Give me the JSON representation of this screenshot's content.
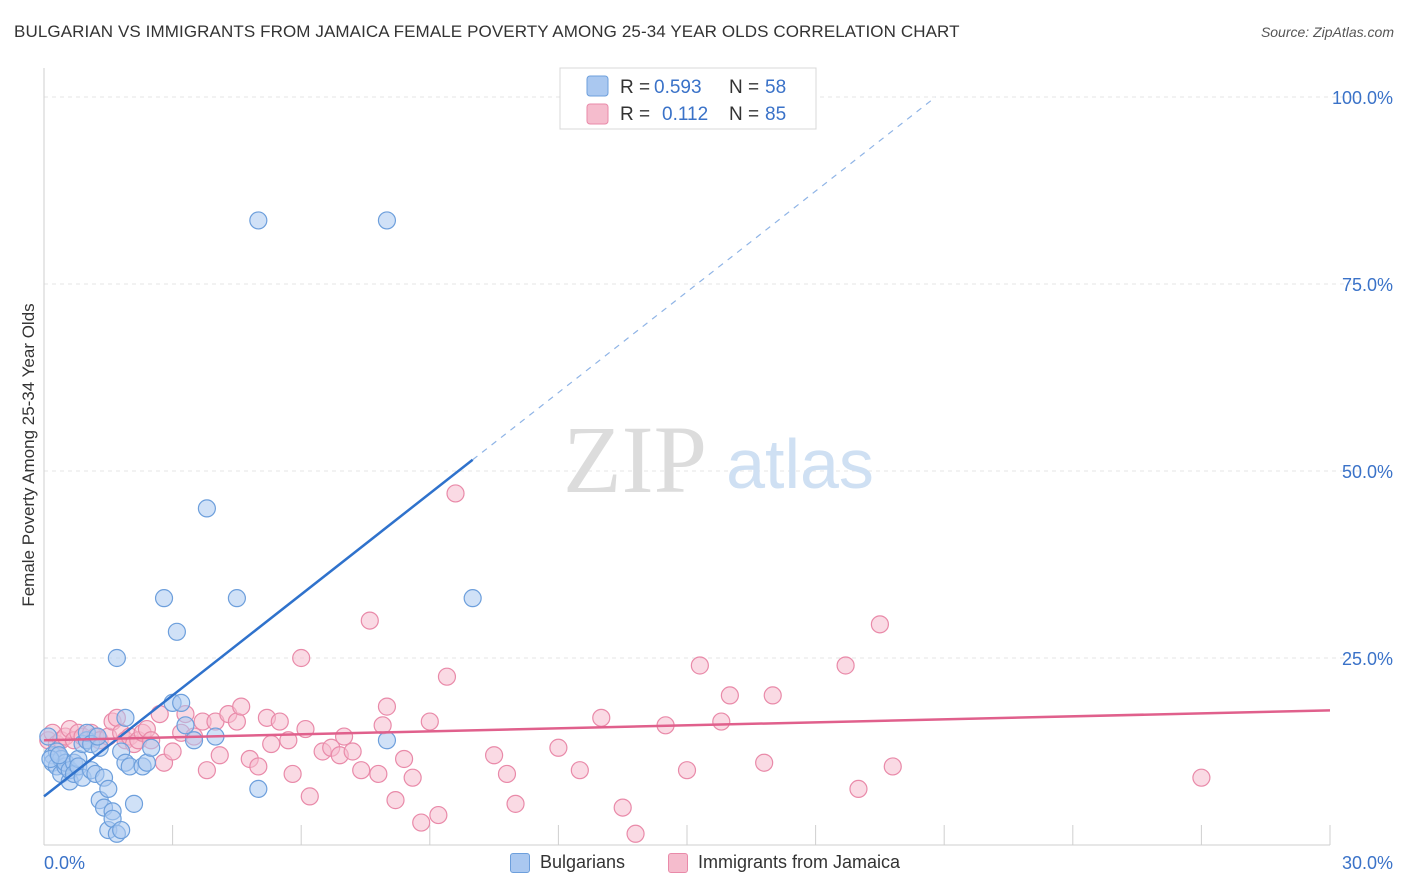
{
  "header": {
    "title": "BULGARIAN VS IMMIGRANTS FROM JAMAICA FEMALE POVERTY AMONG 25-34 YEAR OLDS CORRELATION CHART",
    "source": "Source: ZipAtlas.com"
  },
  "watermark": {
    "zip": "ZIP",
    "atlas": "atlas"
  },
  "legend": {
    "rows": [
      {
        "r_label": "R =",
        "r_value": "0.593",
        "n_label": "N =",
        "n_value": "58"
      },
      {
        "r_label": "R =",
        "r_value": "0.112",
        "n_label": "N =",
        "n_value": "85"
      }
    ]
  },
  "chart_data": {
    "type": "scatter",
    "title": "BULGARIAN VS IMMIGRANTS FROM JAMAICA FEMALE POVERTY AMONG 25-34 YEAR OLDS CORRELATION CHART",
    "xlabel": "",
    "ylabel": "Female Poverty Among 25-34 Year Olds",
    "xlim": [
      0,
      30
    ],
    "ylim": [
      0,
      100
    ],
    "x_tick_labels": [
      {
        "value": 0,
        "label": "0.0%"
      },
      {
        "value": 30,
        "label": "30.0%"
      }
    ],
    "y_tick_labels": [
      {
        "value": 25,
        "label": "25.0%"
      },
      {
        "value": 50,
        "label": "50.0%"
      },
      {
        "value": 75,
        "label": "75.0%"
      },
      {
        "value": 100,
        "label": "100.0%"
      }
    ],
    "colors": {
      "blue_fill": "#aac8f0",
      "blue_stroke": "#6d9fdc",
      "blue_line": "#2f72cc",
      "pink_fill": "#f5bccd",
      "pink_stroke": "#e98aa9",
      "pink_line": "#e0608c",
      "accent_text": "#3a72c8"
    },
    "series": [
      {
        "name": "Bulgarians",
        "color": "#6d9fdc",
        "R": 0.593,
        "N": 58,
        "trend": {
          "x0": 0,
          "y0": 6.5,
          "x1": 10,
          "y1": 51.5,
          "dashed_to_x": 20.8,
          "dashed_to_y": 100
        },
        "points": [
          [
            0.1,
            14.5
          ],
          [
            0.2,
            12.0
          ],
          [
            0.2,
            11.0
          ],
          [
            0.3,
            10.5
          ],
          [
            0.3,
            12.5
          ],
          [
            0.4,
            11.5
          ],
          [
            0.4,
            9.5
          ],
          [
            0.5,
            10.5
          ],
          [
            0.5,
            11.0
          ],
          [
            0.6,
            8.5
          ],
          [
            0.6,
            10.0
          ],
          [
            0.7,
            11.0
          ],
          [
            0.7,
            9.5
          ],
          [
            0.8,
            11.5
          ],
          [
            0.8,
            10.5
          ],
          [
            0.9,
            13.5
          ],
          [
            0.9,
            9.0
          ],
          [
            1.0,
            14.0
          ],
          [
            1.0,
            15.0
          ],
          [
            1.1,
            10.0
          ],
          [
            1.1,
            13.5
          ],
          [
            1.2,
            9.5
          ],
          [
            1.3,
            13.0
          ],
          [
            1.3,
            6.0
          ],
          [
            1.4,
            5.0
          ],
          [
            1.4,
            9.0
          ],
          [
            1.5,
            7.5
          ],
          [
            1.5,
            2.0
          ],
          [
            1.6,
            4.5
          ],
          [
            1.6,
            3.5
          ],
          [
            1.7,
            1.5
          ],
          [
            1.8,
            2.0
          ],
          [
            1.8,
            12.5
          ],
          [
            1.9,
            17.0
          ],
          [
            1.9,
            11.0
          ],
          [
            2.0,
            10.5
          ],
          [
            2.1,
            5.5
          ],
          [
            2.3,
            10.5
          ],
          [
            2.4,
            11.0
          ],
          [
            2.5,
            13.0
          ],
          [
            2.8,
            33.0
          ],
          [
            3.0,
            19.0
          ],
          [
            3.1,
            28.5
          ],
          [
            3.2,
            19.0
          ],
          [
            3.3,
            16.0
          ],
          [
            3.5,
            14.0
          ],
          [
            3.8,
            45.0
          ],
          [
            4.0,
            14.5
          ],
          [
            4.5,
            33.0
          ],
          [
            5.0,
            83.5
          ],
          [
            5.0,
            7.5
          ],
          [
            8.0,
            83.5
          ],
          [
            8.0,
            14.0
          ],
          [
            10.0,
            33.0
          ],
          [
            1.7,
            25.0
          ],
          [
            0.15,
            11.5
          ],
          [
            0.35,
            12.0
          ],
          [
            1.25,
            14.5
          ]
        ]
      },
      {
        "name": "Immigrants from Jamaica",
        "color": "#e98aa9",
        "R": 0.112,
        "N": 85,
        "trend": {
          "x0": 0,
          "y0": 14.0,
          "x1": 30,
          "y1": 18.0
        },
        "points": [
          [
            0.1,
            14.0
          ],
          [
            0.2,
            15.0
          ],
          [
            0.3,
            13.5
          ],
          [
            0.4,
            14.0
          ],
          [
            0.5,
            14.5
          ],
          [
            0.6,
            15.5
          ],
          [
            0.7,
            14.0
          ],
          [
            0.8,
            15.0
          ],
          [
            0.9,
            14.5
          ],
          [
            1.0,
            14.0
          ],
          [
            1.1,
            15.0
          ],
          [
            1.2,
            14.5
          ],
          [
            1.3,
            14.0
          ],
          [
            1.5,
            14.5
          ],
          [
            1.6,
            16.5
          ],
          [
            1.7,
            17.0
          ],
          [
            1.8,
            15.0
          ],
          [
            1.9,
            14.0
          ],
          [
            2.0,
            14.5
          ],
          [
            2.1,
            13.5
          ],
          [
            2.2,
            14.0
          ],
          [
            2.3,
            15.0
          ],
          [
            2.4,
            15.5
          ],
          [
            2.5,
            14.0
          ],
          [
            2.7,
            17.5
          ],
          [
            2.8,
            11.0
          ],
          [
            3.0,
            12.5
          ],
          [
            3.2,
            15.0
          ],
          [
            3.3,
            17.5
          ],
          [
            3.5,
            14.5
          ],
          [
            3.7,
            16.5
          ],
          [
            3.8,
            10.0
          ],
          [
            4.0,
            16.5
          ],
          [
            4.1,
            12.0
          ],
          [
            4.3,
            17.5
          ],
          [
            4.5,
            16.5
          ],
          [
            4.6,
            18.5
          ],
          [
            4.8,
            11.5
          ],
          [
            5.0,
            10.5
          ],
          [
            5.2,
            17.0
          ],
          [
            5.3,
            13.5
          ],
          [
            5.5,
            16.5
          ],
          [
            5.7,
            14.0
          ],
          [
            5.8,
            9.5
          ],
          [
            6.0,
            25.0
          ],
          [
            6.1,
            15.5
          ],
          [
            6.2,
            6.5
          ],
          [
            6.5,
            12.5
          ],
          [
            6.7,
            13.0
          ],
          [
            6.9,
            12.0
          ],
          [
            7.0,
            14.5
          ],
          [
            7.2,
            12.5
          ],
          [
            7.4,
            10.0
          ],
          [
            7.6,
            30.0
          ],
          [
            7.8,
            9.5
          ],
          [
            7.9,
            16.0
          ],
          [
            8.0,
            18.5
          ],
          [
            8.2,
            6.0
          ],
          [
            8.4,
            11.5
          ],
          [
            8.6,
            9.0
          ],
          [
            8.8,
            3.0
          ],
          [
            9.0,
            16.5
          ],
          [
            9.2,
            4.0
          ],
          [
            9.4,
            22.5
          ],
          [
            9.6,
            47.0
          ],
          [
            10.5,
            12.0
          ],
          [
            10.8,
            9.5
          ],
          [
            11.0,
            5.5
          ],
          [
            12.0,
            13.0
          ],
          [
            12.5,
            10.0
          ],
          [
            13.0,
            17.0
          ],
          [
            13.5,
            5.0
          ],
          [
            13.8,
            1.5
          ],
          [
            14.5,
            16.0
          ],
          [
            15.0,
            10.0
          ],
          [
            15.3,
            24.0
          ],
          [
            15.8,
            16.5
          ],
          [
            16.0,
            20.0
          ],
          [
            16.8,
            11.0
          ],
          [
            17.0,
            20.0
          ],
          [
            18.7,
            24.0
          ],
          [
            19.0,
            7.5
          ],
          [
            19.5,
            29.5
          ],
          [
            19.8,
            10.5
          ],
          [
            27.0,
            9.0
          ]
        ]
      }
    ]
  },
  "bottom_legend": [
    {
      "label": "Bulgarians"
    },
    {
      "label": "Immigrants from Jamaica"
    }
  ]
}
